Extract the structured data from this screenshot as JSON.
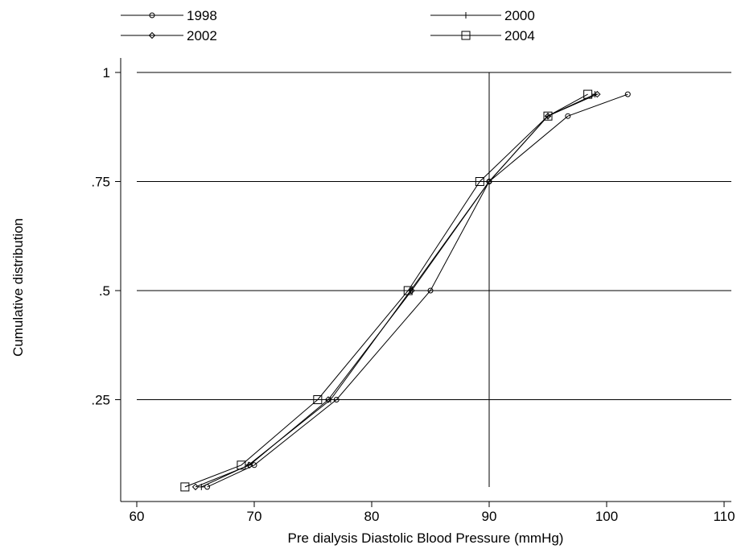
{
  "chart_data": {
    "type": "line",
    "title": "",
    "xlabel": "Pre dialysis Diastolic Blood Pressure (mmHg)",
    "ylabel": "Cumulative distribution",
    "xlim": [
      60,
      110
    ],
    "ylim": [
      0,
      1
    ],
    "x_ticks": [
      60,
      70,
      80,
      90,
      100,
      110
    ],
    "x_tick_labels": [
      "60",
      "70",
      "80",
      "90",
      "100",
      "110"
    ],
    "y_ticks": [
      0.25,
      0.5,
      0.75,
      1
    ],
    "y_tick_labels": [
      ".25",
      ".5",
      ".75",
      "1"
    ],
    "grid": "horizontal lines at y ticks",
    "reference_line_x": 90,
    "legend_position": "top",
    "series": [
      {
        "name": "1998",
        "marker": "circle",
        "x": [
          66,
          70,
          77,
          85,
          90,
          96.7,
          101.8
        ],
        "y": [
          0.05,
          0.1,
          0.25,
          0.5,
          0.75,
          0.9,
          0.95
        ]
      },
      {
        "name": "2000",
        "marker": "plus",
        "x": [
          65.5,
          69.5,
          76.5,
          83.3,
          90,
          95,
          99
        ],
        "y": [
          0.05,
          0.1,
          0.25,
          0.5,
          0.75,
          0.9,
          0.95
        ]
      },
      {
        "name": "2002",
        "marker": "diamond",
        "x": [
          65,
          69.6,
          76.3,
          83.4,
          90,
          95,
          99.2
        ],
        "y": [
          0.05,
          0.1,
          0.25,
          0.5,
          0.75,
          0.9,
          0.95
        ]
      },
      {
        "name": "2004",
        "marker": "square",
        "x": [
          64.1,
          68.9,
          75.4,
          83.1,
          89.2,
          95,
          98.4
        ],
        "y": [
          0.05,
          0.1,
          0.25,
          0.5,
          0.75,
          0.9,
          0.95
        ]
      }
    ]
  }
}
